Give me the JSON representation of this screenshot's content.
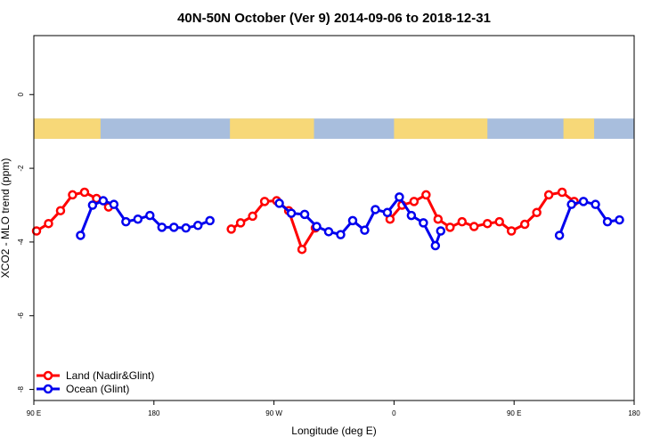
{
  "chart_data": {
    "type": "line",
    "title": "40N-50N October (Ver 9)   2014-09-06 to 2018-12-31",
    "xlabel": "Longitude (deg E)",
    "ylabel": "XCO2 - MLO trend (ppm)",
    "xlim": [
      90,
      540
    ],
    "ylim": [
      -8.3,
      1.6
    ],
    "x_ticks": [
      {
        "value": 90,
        "label": "90 E"
      },
      {
        "value": 180,
        "label": "180"
      },
      {
        "value": 270,
        "label": "90 W"
      },
      {
        "value": 360,
        "label": "0"
      },
      {
        "value": 450,
        "label": "90 E"
      },
      {
        "value": 540,
        "label": "180"
      }
    ],
    "y_ticks": [
      0,
      -2,
      -4,
      -6,
      -8
    ],
    "grid": false,
    "legend_position": "bottom-left",
    "map_strip": {
      "y_range": [
        -0.65,
        -1.2
      ],
      "ocean_color": "#a8bedd",
      "land_color": "#f7d878",
      "land_lon": [
        [
          90,
          140
        ],
        [
          237,
          300
        ],
        [
          360,
          430
        ],
        [
          487,
          510
        ]
      ]
    },
    "series": [
      {
        "name": "Land (Nadir&Glint)",
        "color": "#ff0000",
        "segments": [
          [
            [
              92,
              -3.7
            ],
            [
              101,
              -3.5
            ],
            [
              110,
              -3.15
            ],
            [
              119,
              -2.72
            ],
            [
              128,
              -2.65
            ],
            [
              137,
              -2.82
            ],
            [
              146,
              -3.05
            ]
          ],
          [
            [
              238,
              -3.65
            ],
            [
              245,
              -3.48
            ],
            [
              254,
              -3.3
            ],
            [
              263,
              -2.9
            ],
            [
              272,
              -2.88
            ],
            [
              281,
              -3.15
            ],
            [
              291,
              -4.2
            ],
            [
              301,
              -3.62
            ]
          ],
          [
            [
              357,
              -3.38
            ],
            [
              366,
              -3.0
            ],
            [
              375,
              -2.9
            ],
            [
              384,
              -2.72
            ],
            [
              393,
              -3.38
            ],
            [
              402,
              -3.6
            ],
            [
              411,
              -3.45
            ],
            [
              420,
              -3.58
            ],
            [
              430,
              -3.5
            ],
            [
              439,
              -3.45
            ],
            [
              448,
              -3.7
            ],
            [
              458,
              -3.52
            ],
            [
              467,
              -3.2
            ],
            [
              476,
              -2.72
            ],
            [
              486,
              -2.65
            ],
            [
              495,
              -2.9
            ]
          ]
        ]
      },
      {
        "name": "Ocean (Glint)",
        "color": "#0000ee",
        "segments": [
          [
            [
              125,
              -3.82
            ],
            [
              134,
              -3.0
            ],
            [
              142,
              -2.88
            ],
            [
              150,
              -2.98
            ],
            [
              159,
              -3.45
            ],
            [
              168,
              -3.38
            ],
            [
              177,
              -3.28
            ],
            [
              186,
              -3.6
            ],
            [
              195,
              -3.6
            ],
            [
              204,
              -3.62
            ],
            [
              213,
              -3.55
            ],
            [
              222,
              -3.42
            ]
          ],
          [
            [
              274,
              -2.95
            ],
            [
              283,
              -3.22
            ],
            [
              293,
              -3.25
            ],
            [
              302,
              -3.58
            ],
            [
              311,
              -3.72
            ],
            [
              320,
              -3.8
            ],
            [
              329,
              -3.42
            ],
            [
              338,
              -3.68
            ],
            [
              346,
              -3.12
            ],
            [
              355,
              -3.2
            ],
            [
              364,
              -2.78
            ],
            [
              373,
              -3.28
            ],
            [
              382,
              -3.48
            ],
            [
              391,
              -4.1
            ],
            [
              395,
              -3.7
            ]
          ],
          [
            [
              484,
              -3.82
            ],
            [
              493,
              -2.98
            ],
            [
              502,
              -2.9
            ],
            [
              511,
              -2.98
            ],
            [
              520,
              -3.45
            ],
            [
              529,
              -3.4
            ]
          ]
        ]
      }
    ]
  }
}
